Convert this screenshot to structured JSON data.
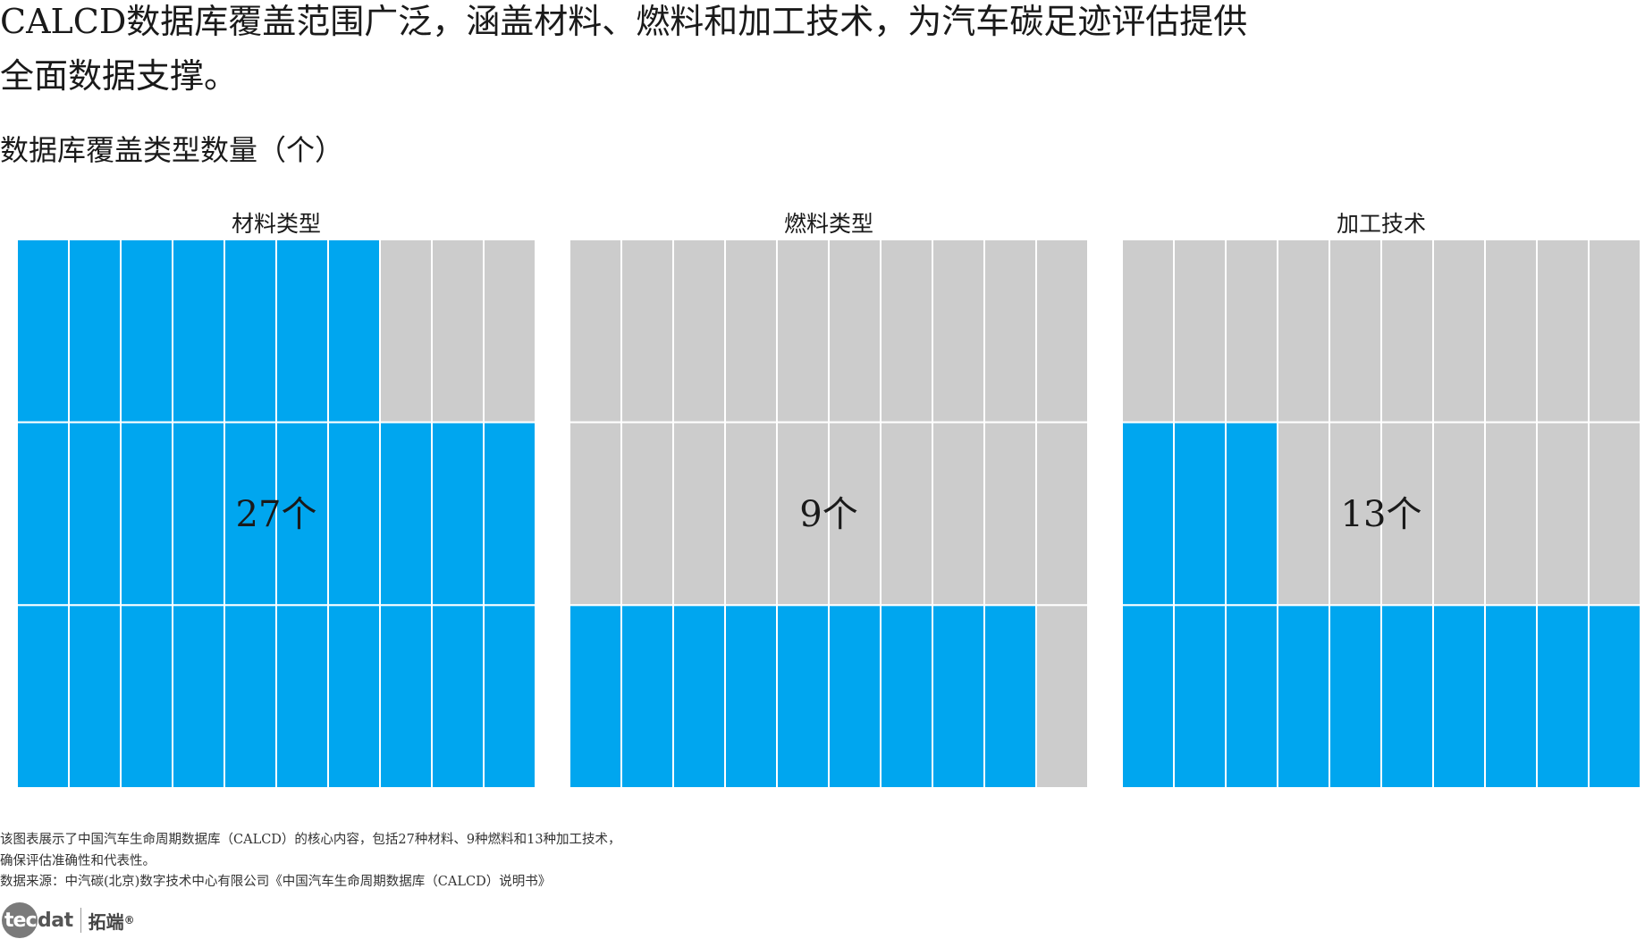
{
  "headline": "CALCD数据库覆盖范围广泛，涵盖材料、燃料和加工技术，为汽车碳足迹评估提供全面数据支撑。",
  "chart_data": {
    "type": "waffle",
    "title": "数据库覆盖类型数量（个）",
    "grid": {
      "rows": 3,
      "cols": 10,
      "total": 30
    },
    "colors": {
      "filled": "#00a6ef",
      "empty": "#cccccc",
      "divider": "#ffffff"
    },
    "panels": [
      {
        "name": "材料类型",
        "value": 27,
        "label": "27个"
      },
      {
        "name": "燃料类型",
        "value": 9,
        "label": "9个"
      },
      {
        "name": "加工技术",
        "value": 13,
        "label": "13个"
      }
    ]
  },
  "footnote": {
    "description": "该图表展示了中国汽车生命周期数据库（CALCD）的核心内容，包括27种材料、9种燃料和13种加工技术，确保评估准确性和代表性。",
    "source": "数据来源：中汽碳(北京)数字技术中心有限公司《中国汽车生命周期数据库（CALCD）说明书》"
  },
  "logo": {
    "circle": "tec",
    "rest": "dat",
    "cn": "拓端",
    "reg": "®"
  }
}
